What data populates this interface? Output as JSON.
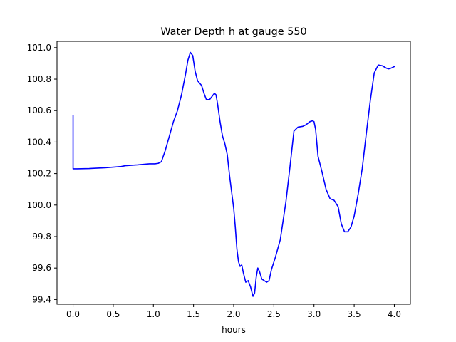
{
  "chart_data": {
    "type": "line",
    "title": "Water Depth h at gauge 550",
    "xlabel": "hours",
    "ylabel": "",
    "xlim": [
      -0.2,
      4.2
    ],
    "ylim": [
      99.37,
      101.04
    ],
    "x_ticks": [
      0.0,
      0.5,
      1.0,
      1.5,
      2.0,
      2.5,
      3.0,
      3.5,
      4.0
    ],
    "x_tick_labels": [
      "0.0",
      "0.5",
      "1.0",
      "1.5",
      "2.0",
      "2.5",
      "3.0",
      "3.5",
      "4.0"
    ],
    "y_ticks": [
      99.4,
      99.6,
      99.8,
      100.0,
      100.2,
      100.4,
      100.6,
      100.8,
      101.0
    ],
    "y_tick_labels": [
      "99.4",
      "99.6",
      "99.8",
      "100.0",
      "100.2",
      "100.4",
      "100.6",
      "100.8",
      "101.0"
    ],
    "grid": false,
    "legend": "none",
    "series": [
      {
        "color": "#0000ff",
        "x": [
          0.0,
          0.0,
          0.05,
          0.2,
          0.4,
          0.6,
          0.65,
          0.8,
          0.95,
          1.02,
          1.06,
          1.1,
          1.15,
          1.2,
          1.25,
          1.3,
          1.35,
          1.4,
          1.43,
          1.46,
          1.49,
          1.52,
          1.55,
          1.6,
          1.63,
          1.66,
          1.7,
          1.73,
          1.76,
          1.78,
          1.8,
          1.83,
          1.86,
          1.89,
          1.92,
          1.95,
          1.97,
          2.0,
          2.02,
          2.04,
          2.06,
          2.08,
          2.1,
          2.12,
          2.15,
          2.18,
          2.21,
          2.24,
          2.26,
          2.28,
          2.3,
          2.32,
          2.35,
          2.38,
          2.41,
          2.44,
          2.47,
          2.52,
          2.58,
          2.65,
          2.7,
          2.75,
          2.8,
          2.86,
          2.9,
          2.95,
          2.98,
          3.0,
          3.02,
          3.05,
          3.1,
          3.15,
          3.2,
          3.25,
          3.3,
          3.34,
          3.38,
          3.42,
          3.46,
          3.5,
          3.55,
          3.6,
          3.65,
          3.7,
          3.75,
          3.8,
          3.85,
          3.9,
          3.93,
          3.96,
          4.0
        ],
        "y": [
          100.57,
          100.23,
          100.23,
          100.232,
          100.237,
          100.245,
          100.25,
          100.255,
          100.262,
          100.262,
          100.265,
          100.275,
          100.35,
          100.44,
          100.53,
          100.6,
          100.7,
          100.83,
          100.92,
          100.97,
          100.95,
          100.85,
          100.79,
          100.76,
          100.71,
          100.67,
          100.67,
          100.69,
          100.71,
          100.7,
          100.64,
          100.53,
          100.44,
          100.39,
          100.32,
          100.18,
          100.1,
          99.98,
          99.86,
          99.72,
          99.64,
          99.61,
          99.62,
          99.57,
          99.51,
          99.52,
          99.48,
          99.42,
          99.44,
          99.54,
          99.6,
          99.58,
          99.53,
          99.52,
          99.51,
          99.52,
          99.59,
          99.67,
          99.78,
          100.02,
          100.24,
          100.47,
          100.495,
          100.5,
          100.51,
          100.53,
          100.535,
          100.53,
          100.48,
          100.31,
          100.21,
          100.1,
          100.04,
          100.03,
          99.99,
          99.88,
          99.83,
          99.83,
          99.86,
          99.93,
          100.07,
          100.23,
          100.45,
          100.66,
          100.84,
          100.89,
          100.885,
          100.87,
          100.865,
          100.87,
          100.88
        ]
      }
    ]
  }
}
